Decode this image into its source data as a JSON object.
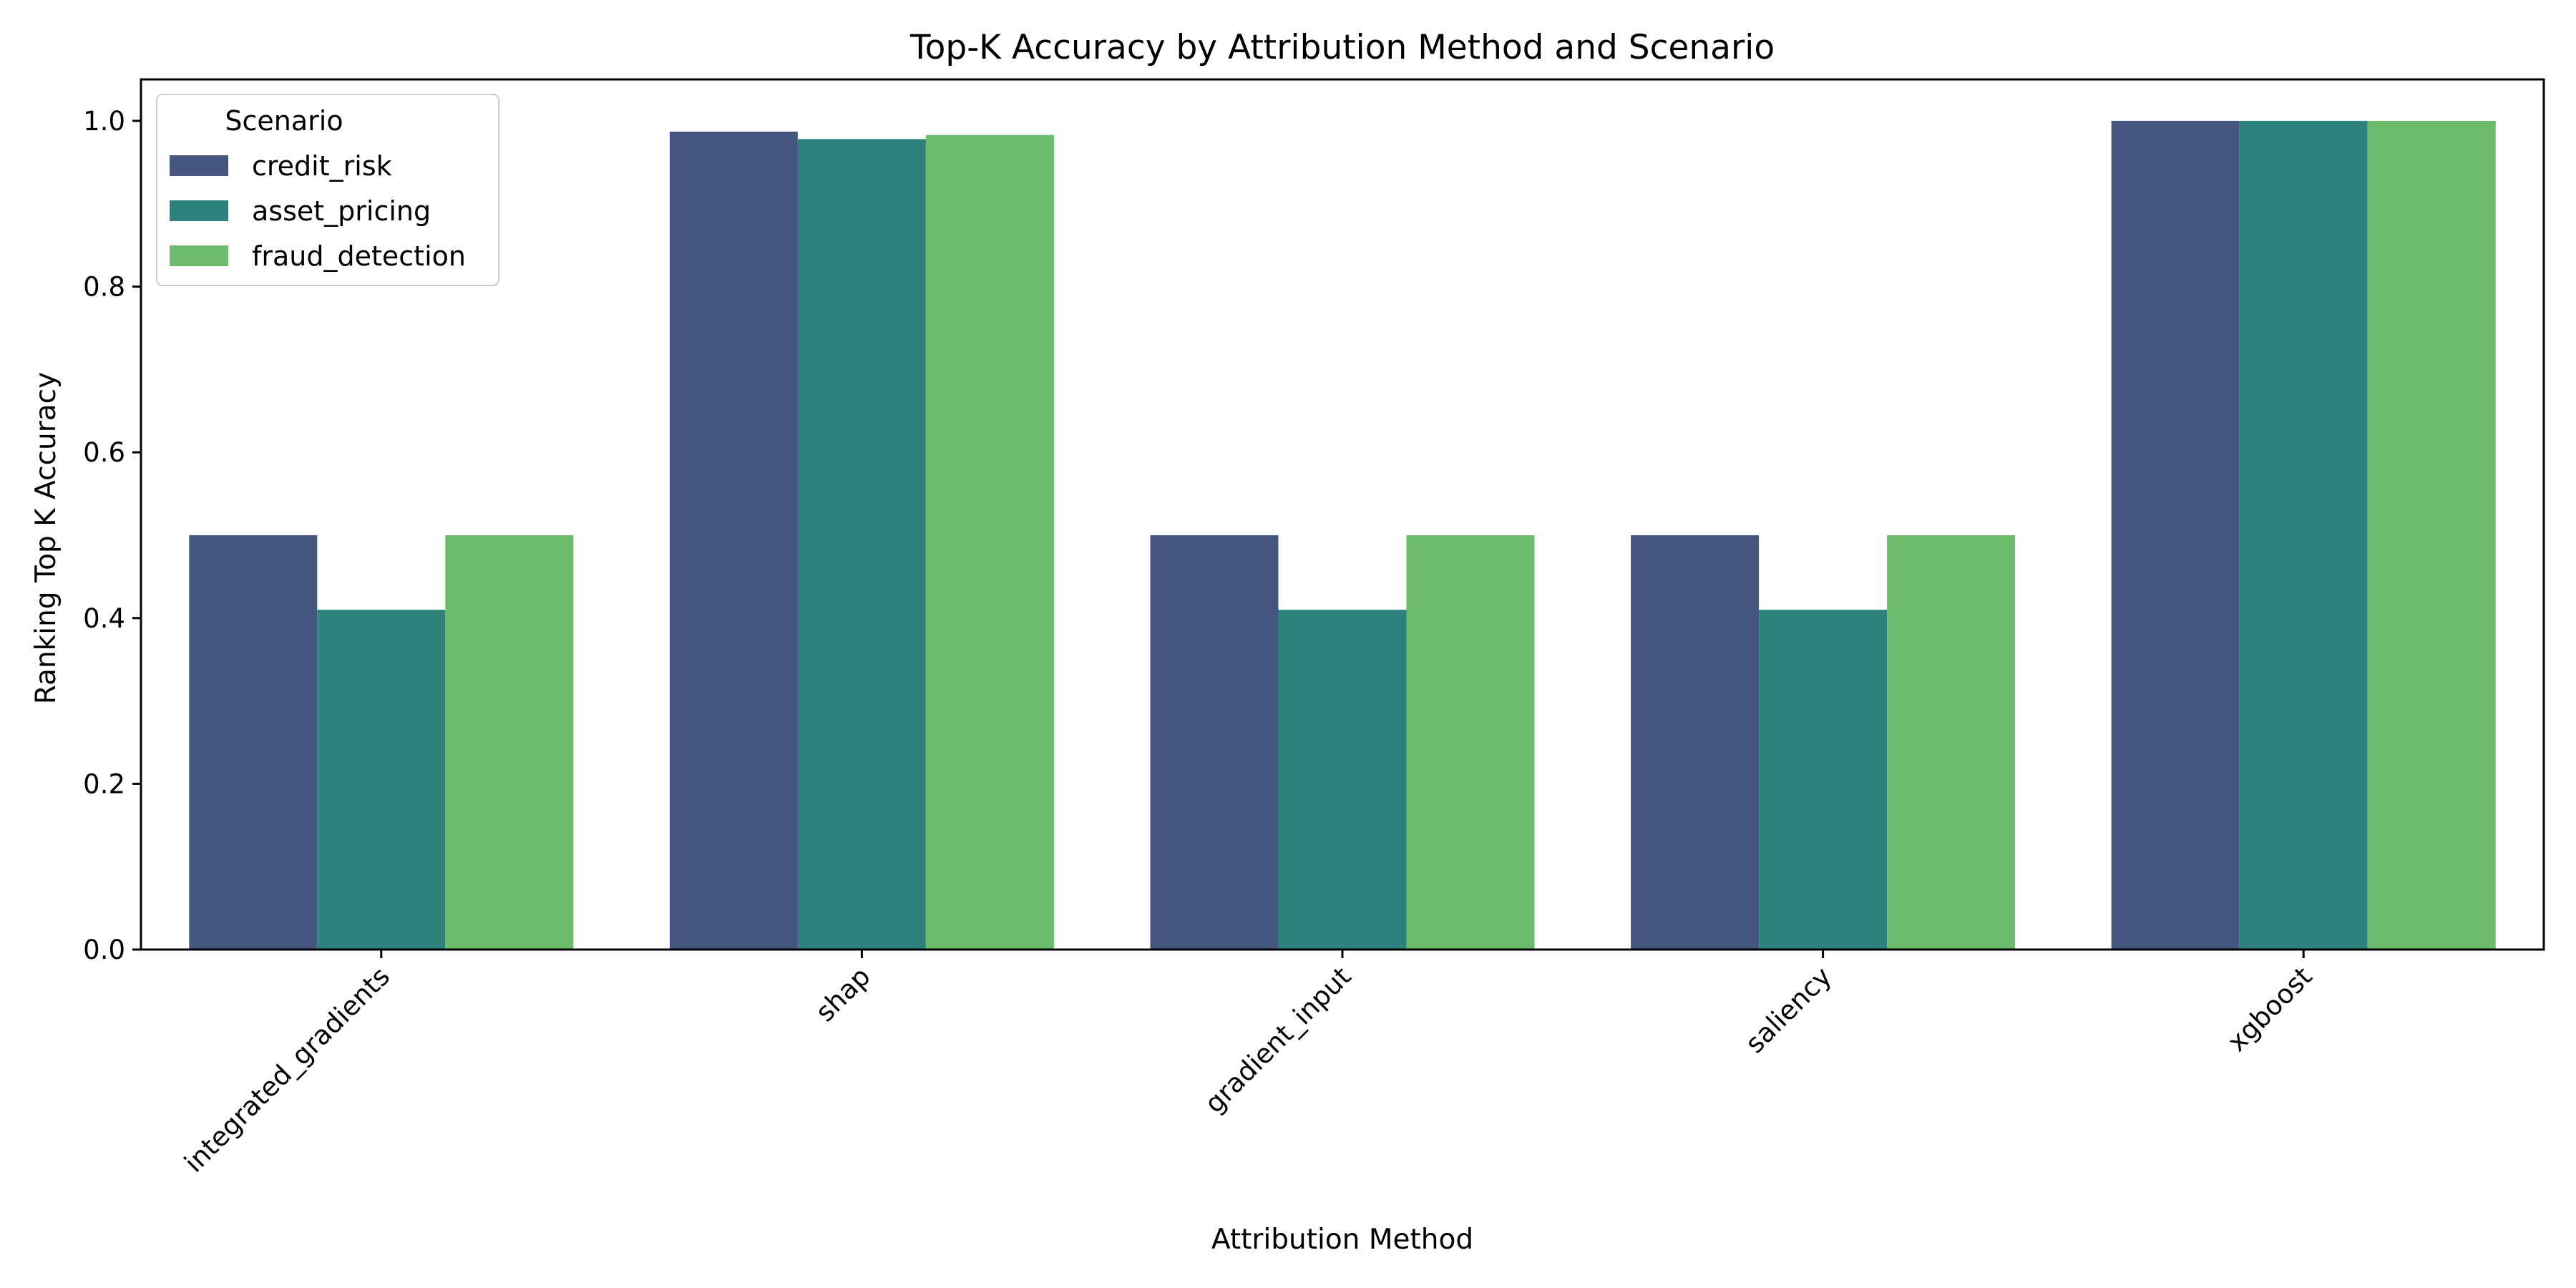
{
  "chart_data": {
    "type": "bar",
    "title": "Top-K Accuracy by Attribution Method and Scenario",
    "xlabel": "Attribution Method",
    "ylabel": "Ranking Top K Accuracy",
    "categories": [
      "integrated_gradients",
      "shap",
      "gradient_input",
      "saliency",
      "xgboost"
    ],
    "series": [
      {
        "name": "credit_risk",
        "color": "#46577f",
        "values": [
          0.5,
          0.987,
          0.5,
          0.5,
          1.0
        ]
      },
      {
        "name": "asset_pricing",
        "color": "#2e827e",
        "values": [
          0.41,
          0.978,
          0.41,
          0.41,
          1.0
        ]
      },
      {
        "name": "fraud_detection",
        "color": "#6cbc6c",
        "values": [
          0.5,
          0.983,
          0.5,
          0.5,
          1.0
        ]
      }
    ],
    "ylim": [
      0,
      1.05
    ],
    "yticks": [
      "0.0",
      "0.2",
      "0.4",
      "0.6",
      "0.8",
      "1.0"
    ],
    "legend": {
      "title": "Scenario",
      "position": "top-left"
    },
    "grid": false
  }
}
